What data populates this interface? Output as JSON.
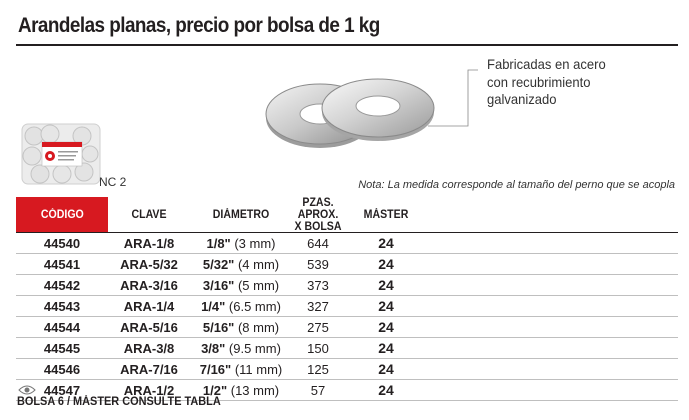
{
  "title": "Arandelas planas, precio por bolsa de 1 kg",
  "callout": [
    "Fabricadas en acero",
    "con recubrimiento",
    "galvanizado"
  ],
  "model_code": "NC 2",
  "note": "Nota: La medida corresponde al tamaño del perno que se acopla",
  "table": {
    "headers": {
      "codigo": "CÓDIGO",
      "clave": "CLAVE",
      "diametro": "DIÁMETRO",
      "pzas_line1": "PZAS. APROX.",
      "pzas_line2": "X BOLSA",
      "master": "MÁSTER"
    },
    "rows": [
      {
        "codigo": "44540",
        "clave": "ARA-1/8",
        "frac": "1/8\"",
        "mm": " (3 mm)",
        "pzas": "644",
        "master": "24"
      },
      {
        "codigo": "44541",
        "clave": "ARA-5/32",
        "frac": "5/32\"",
        "mm": " (4 mm)",
        "pzas": "539",
        "master": "24"
      },
      {
        "codigo": "44542",
        "clave": "ARA-3/16",
        "frac": "3/16\"",
        "mm": " (5 mm)",
        "pzas": "373",
        "master": "24"
      },
      {
        "codigo": "44543",
        "clave": "ARA-1/4",
        "frac": "1/4\"",
        "mm": " (6.5 mm)",
        "pzas": "327",
        "master": "24"
      },
      {
        "codigo": "44544",
        "clave": "ARA-5/16",
        "frac": "5/16\"",
        "mm": " (8 mm)",
        "pzas": "275",
        "master": "24"
      },
      {
        "codigo": "44545",
        "clave": "ARA-3/8",
        "frac": "3/8\"",
        "mm": " (9.5 mm)",
        "pzas": "150",
        "master": "24"
      },
      {
        "codigo": "44546",
        "clave": "ARA-7/16",
        "frac": "7/16\"",
        "mm": " (11 mm)",
        "pzas": "125",
        "master": "24"
      },
      {
        "codigo": "44547",
        "clave": "ARA-1/2",
        "frac": "1/2\"",
        "mm": " (13 mm)",
        "pzas": "57",
        "master": "24"
      }
    ]
  },
  "footer": "BOLSA 6 / MÁSTER CONSULTE TABLA",
  "colors": {
    "accent": "#d71920",
    "text": "#231f20"
  }
}
